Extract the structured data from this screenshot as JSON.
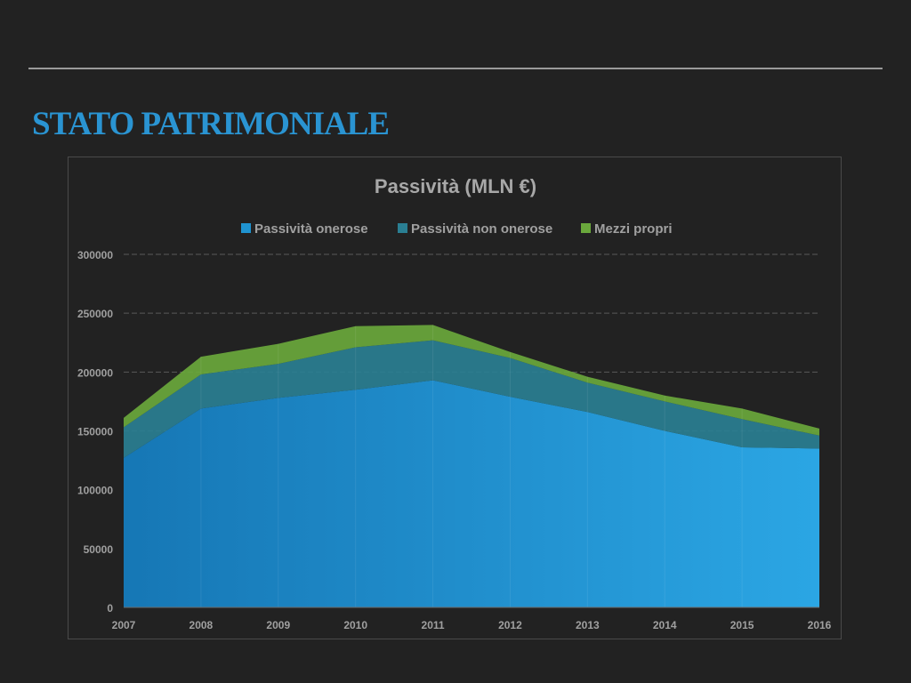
{
  "slide": {
    "title": "STATO PATRIMONIALE"
  },
  "chart_data": {
    "type": "area",
    "stacked": true,
    "title": "Passività (MLN €)",
    "x": [
      "2007",
      "2008",
      "2009",
      "2010",
      "2011",
      "2012",
      "2013",
      "2014",
      "2015",
      "2016"
    ],
    "series": [
      {
        "name": "Passività onerose",
        "color": "#1f93d0",
        "values": [
          127000,
          169000,
          178000,
          185000,
          193000,
          179000,
          166000,
          150000,
          136000,
          135000
        ]
      },
      {
        "name": "Passività non onerose",
        "color": "#2a7f93",
        "values": [
          26000,
          29000,
          29000,
          36000,
          34000,
          33000,
          25000,
          25000,
          24000,
          11000
        ]
      },
      {
        "name": "Mezzi propri",
        "color": "#6aa83c",
        "values": [
          8000,
          15000,
          17000,
          18000,
          13000,
          5000,
          5000,
          5000,
          9000,
          6000
        ]
      }
    ],
    "ylim": [
      0,
      300000
    ],
    "yticks": [
      "0",
      "50000",
      "100000",
      "150000",
      "200000",
      "250000",
      "300000"
    ],
    "grid": true,
    "legend_position": "top"
  }
}
